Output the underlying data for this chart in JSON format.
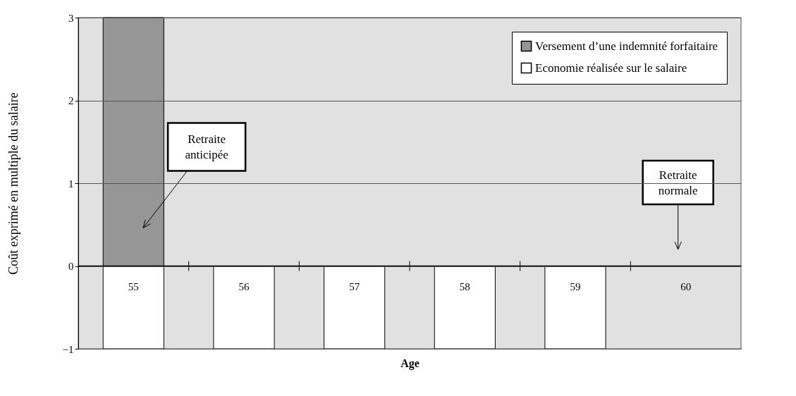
{
  "chart_data": {
    "type": "bar",
    "xlabel": "Age",
    "ylabel": "Coût exprimé en multiple du salaire",
    "categories": [
      "55",
      "56",
      "57",
      "58",
      "59",
      "60"
    ],
    "series": [
      {
        "name": "Versement d’une indemnité forfaitaire",
        "color": "#969696",
        "values": [
          3,
          null,
          null,
          null,
          null,
          null
        ]
      },
      {
        "name": "Economie réalisée sur le salaire",
        "color": "#ffffff",
        "values": [
          -1,
          -1,
          -1,
          -1,
          -1,
          null
        ]
      }
    ],
    "ylim": [
      -1,
      3
    ],
    "yticks": [
      -1,
      0,
      1,
      2,
      3
    ],
    "grid": "y",
    "legend": "top right",
    "annotations": [
      "Retraite anticipée",
      "Retraite normale"
    ]
  }
}
